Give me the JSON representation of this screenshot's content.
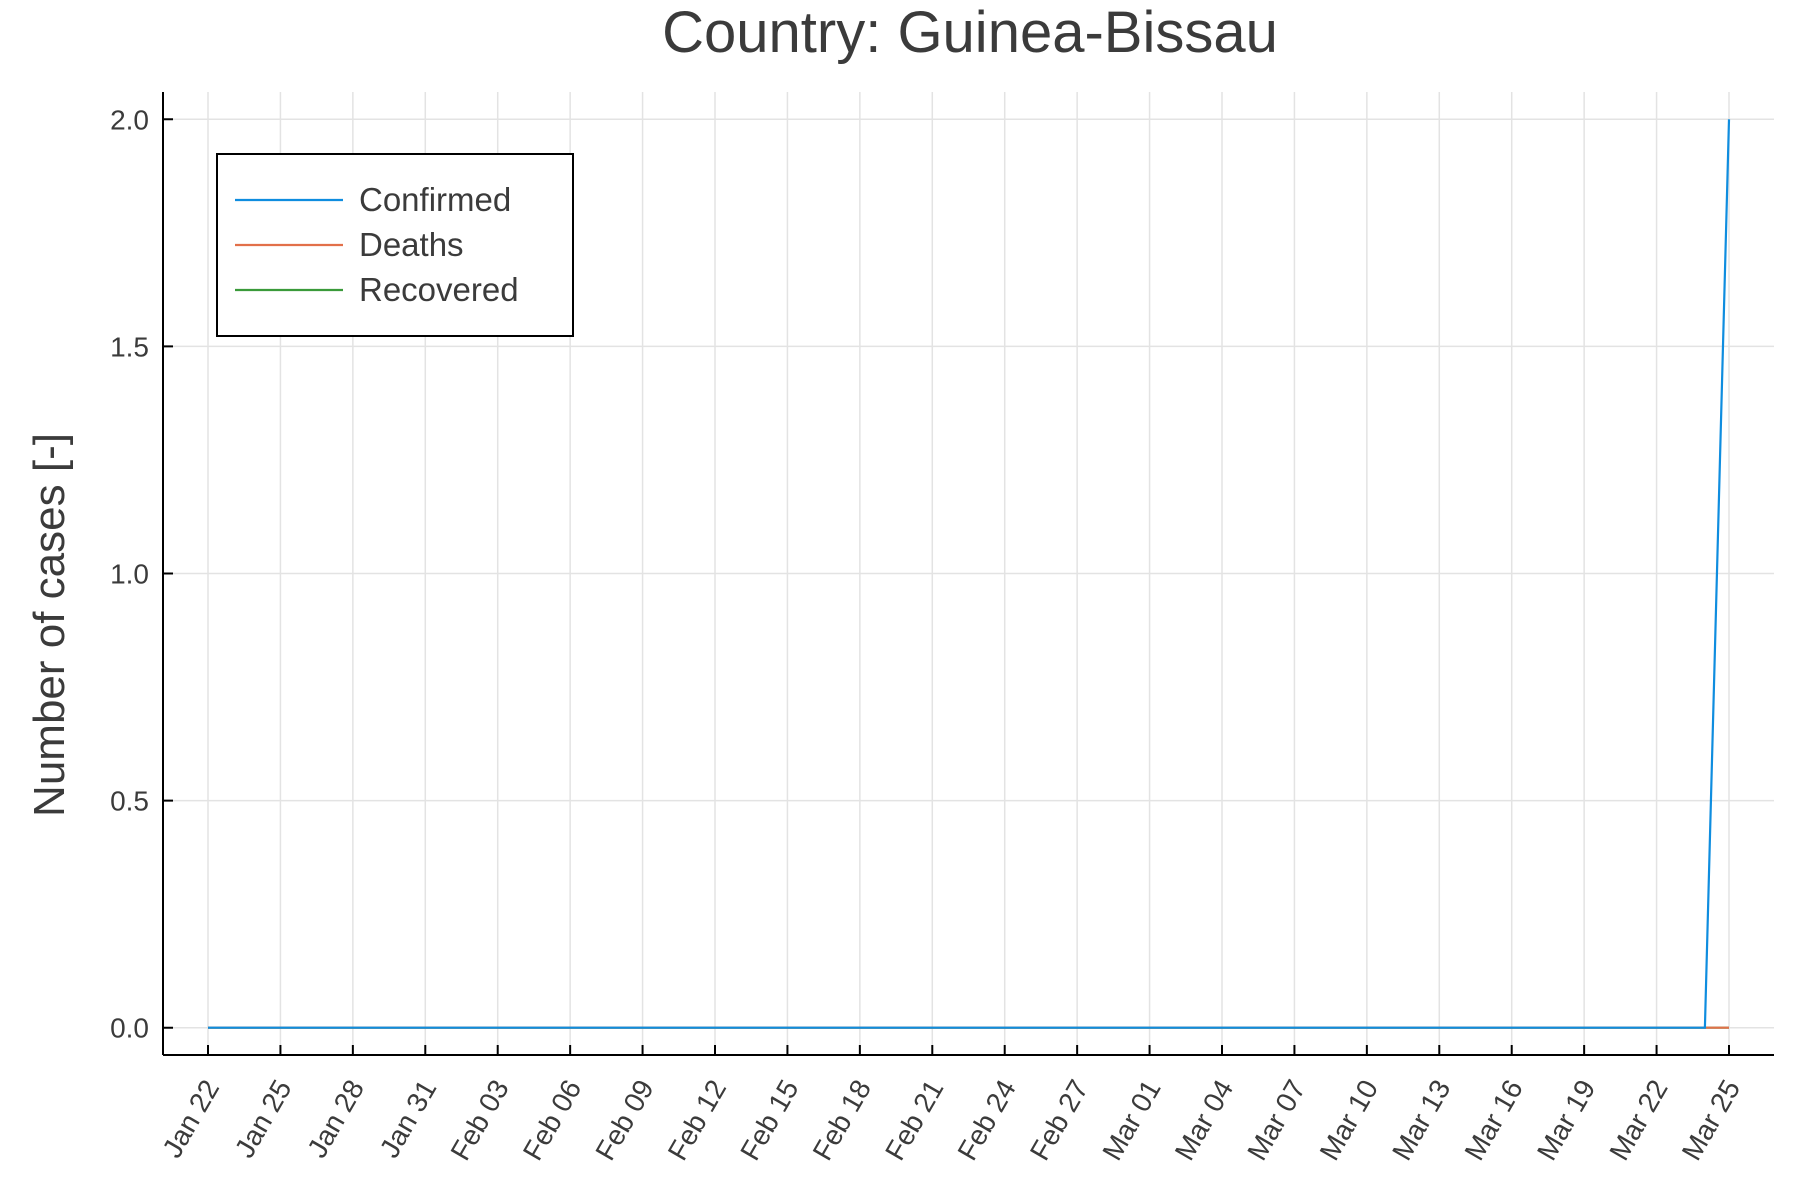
{
  "chart_data": {
    "type": "line",
    "title": "Country: Guinea-Bissau",
    "xlabel": "",
    "ylabel": "Number of cases [-]",
    "xlim": [
      "2020-01-22",
      "2020-03-25"
    ],
    "ylim": [
      -0.06,
      2.06
    ],
    "y_ticks": [
      0.0,
      0.5,
      1.0,
      1.5,
      2.0
    ],
    "y_tick_labels": [
      "0.0",
      "0.5",
      "1.0",
      "1.5",
      "2.0"
    ],
    "x_ticks": [
      "2020-01-22",
      "2020-01-25",
      "2020-01-28",
      "2020-01-31",
      "2020-02-03",
      "2020-02-06",
      "2020-02-09",
      "2020-02-12",
      "2020-02-15",
      "2020-02-18",
      "2020-02-21",
      "2020-02-24",
      "2020-02-27",
      "2020-03-01",
      "2020-03-04",
      "2020-03-07",
      "2020-03-10",
      "2020-03-13",
      "2020-03-16",
      "2020-03-19",
      "2020-03-22",
      "2020-03-25"
    ],
    "x_tick_labels": [
      "Jan 22",
      "Jan 25",
      "Jan 28",
      "Jan 31",
      "Feb 03",
      "Feb 06",
      "Feb 09",
      "Feb 12",
      "Feb 15",
      "Feb 18",
      "Feb 21",
      "Feb 24",
      "Feb 27",
      "Mar 01",
      "Mar 04",
      "Mar 07",
      "Mar 10",
      "Mar 13",
      "Mar 16",
      "Mar 19",
      "Mar 22",
      "Mar 25"
    ],
    "grid": true,
    "legend_position": "top-left",
    "series": [
      {
        "name": "Confirmed",
        "color": "#0f8ddf",
        "points": [
          [
            "2020-01-22",
            0
          ],
          [
            "2020-03-24",
            0
          ],
          [
            "2020-03-25",
            2
          ]
        ]
      },
      {
        "name": "Deaths",
        "color": "#e2704a",
        "points": [
          [
            "2020-01-22",
            0
          ],
          [
            "2020-03-25",
            0
          ]
        ]
      },
      {
        "name": "Recovered",
        "color": "#3a9a3a",
        "points": [
          [
            "2020-01-22",
            0
          ],
          [
            "2020-03-25",
            0
          ]
        ]
      }
    ]
  }
}
